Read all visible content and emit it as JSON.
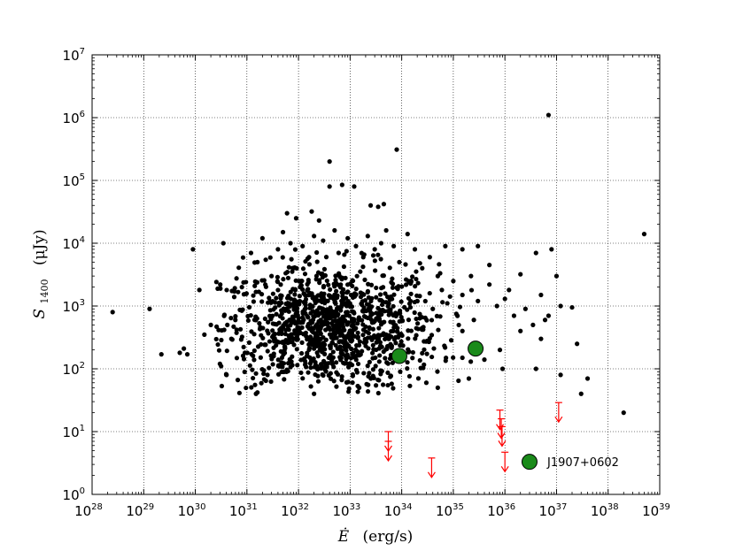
{
  "chart_data": {
    "type": "scatter",
    "xscale": "log",
    "yscale": "log",
    "xlim": [
      1e+28,
      1e+39
    ],
    "ylim": [
      1,
      10000000.0
    ],
    "grid": true,
    "xlabel": {
      "main": "Ė",
      "unit": "(erg/s)"
    },
    "ylabel": {
      "main": "S",
      "sub": "1400",
      "unit": "(μJy)"
    },
    "xticks": [
      {
        "base": "10",
        "exp": "28",
        "value": 1e+28
      },
      {
        "base": "10",
        "exp": "29",
        "value": 1e+29
      },
      {
        "base": "10",
        "exp": "30",
        "value": 1e+30
      },
      {
        "base": "10",
        "exp": "31",
        "value": 1e+31
      },
      {
        "base": "10",
        "exp": "32",
        "value": 1e+32
      },
      {
        "base": "10",
        "exp": "33",
        "value": 1e+33
      },
      {
        "base": "10",
        "exp": "34",
        "value": 1e+34
      },
      {
        "base": "10",
        "exp": "35",
        "value": 1e+35
      },
      {
        "base": "10",
        "exp": "36",
        "value": 1e+36
      },
      {
        "base": "10",
        "exp": "37",
        "value": 1e+37
      },
      {
        "base": "10",
        "exp": "38",
        "value": 1e+38
      },
      {
        "base": "10",
        "exp": "39",
        "value": 1e+39
      }
    ],
    "yticks": [
      {
        "base": "10",
        "exp": "0",
        "value": 1
      },
      {
        "base": "10",
        "exp": "1",
        "value": 10
      },
      {
        "base": "10",
        "exp": "2",
        "value": 100
      },
      {
        "base": "10",
        "exp": "3",
        "value": 1000
      },
      {
        "base": "10",
        "exp": "4",
        "value": 10000
      },
      {
        "base": "10",
        "exp": "5",
        "value": 100000
      },
      {
        "base": "10",
        "exp": "6",
        "value": 1000000
      },
      {
        "base": "10",
        "exp": "7",
        "value": 10000000
      }
    ],
    "colors": {
      "pulsars": "#000000",
      "detections": "#1a8a1a",
      "upper_limits": "#ff0000"
    },
    "series": [
      {
        "kind": "background-pulsars",
        "points": [
          [
            2.5e+28,
            800
          ],
          [
            1.3e+29,
            900
          ],
          [
            2.2e+29,
            170
          ],
          [
            5e+29,
            180
          ],
          [
            6e+29,
            210
          ],
          [
            7e+29,
            170
          ],
          [
            9e+29,
            8000
          ],
          [
            1.2e+30,
            1800
          ],
          [
            1.5e+30,
            350
          ],
          [
            2e+30,
            500
          ],
          [
            3.5e+30,
            10000
          ],
          [
            7e+31,
            10000
          ],
          [
            6e+31,
            30000
          ],
          [
            9e+31,
            25000
          ],
          [
            1.8e+32,
            32000
          ],
          [
            2.5e+32,
            23000
          ],
          [
            4e+32,
            200000
          ],
          [
            4e+32,
            80000
          ],
          [
            7e+32,
            85000
          ],
          [
            1.2e+33,
            80000
          ],
          [
            2.5e+33,
            40000
          ],
          [
            3.5e+33,
            38000
          ],
          [
            4.5e+33,
            42000
          ],
          [
            8e+33,
            310000
          ],
          [
            7e+36,
            1100000
          ],
          [
            4e+36,
            7000
          ],
          [
            8e+36,
            8000
          ],
          [
            5e+38,
            14000
          ],
          [
            2.5e+37,
            250
          ],
          [
            3e+37,
            40
          ],
          [
            4e+37,
            70
          ],
          [
            1.2e+37,
            80
          ],
          [
            2e+36,
            400
          ],
          [
            4e+36,
            100
          ],
          [
            2e+38,
            20
          ],
          [
            2e+37,
            950
          ],
          [
            1.2e+37,
            1000
          ],
          [
            1e+37,
            3000
          ],
          [
            5e+36,
            1500
          ],
          [
            6e+36,
            600
          ],
          [
            2e+36,
            3200
          ],
          [
            1.2e+36,
            1800
          ],
          [
            1.5e+35,
            8000
          ],
          [
            3e+35,
            9000
          ],
          [
            5e+35,
            4500
          ],
          [
            1.5e+35,
            150
          ],
          [
            4e+35,
            140
          ],
          [
            8e+35,
            200
          ],
          [
            9e+35,
            100
          ],
          [
            2e+35,
            70
          ],
          [
            5e+34,
            50
          ],
          [
            3e+34,
            60
          ],
          [
            1.5e+33,
            50
          ],
          [
            2e+32,
            40
          ],
          [
            1.5e+31,
            40
          ],
          [
            2.5e+31,
            80
          ],
          [
            4e+30,
            80
          ],
          [
            3e+30,
            120
          ],
          [
            5e+30,
            300
          ],
          [
            8e+30,
            2000
          ],
          [
            1.2e+31,
            7000
          ],
          [
            1.6e+31,
            5000
          ],
          [
            2e+31,
            12000
          ],
          [
            3e+31,
            3000
          ],
          [
            4e+31,
            8000
          ],
          [
            5e+31,
            15000
          ],
          [
            8e+31,
            4000
          ],
          [
            1.2e+32,
            9000
          ],
          [
            1.6e+32,
            6000
          ],
          [
            2e+32,
            13000
          ],
          [
            3e+32,
            11000
          ],
          [
            5e+32,
            16000
          ],
          [
            6e+32,
            7000
          ],
          [
            9e+32,
            12000
          ],
          [
            1.3e+33,
            9000
          ],
          [
            1.8e+33,
            6000
          ],
          [
            2.2e+33,
            13000
          ],
          [
            3e+33,
            8000
          ],
          [
            4e+33,
            10000
          ],
          [
            5e+33,
            16000
          ],
          [
            7e+33,
            9000
          ],
          [
            9e+33,
            5000
          ],
          [
            1.3e+34,
            14000
          ],
          [
            1.8e+34,
            8000
          ],
          [
            2.5e+34,
            4000
          ],
          [
            3.5e+34,
            6000
          ],
          [
            5e+34,
            3000
          ],
          [
            7e+34,
            9000
          ],
          [
            1e+35,
            2500
          ],
          [
            1.5e+35,
            1500
          ],
          [
            2.2e+35,
            3000
          ],
          [
            3e+35,
            1200
          ],
          [
            5e+35,
            2200
          ],
          [
            7e+35,
            1000
          ],
          [
            1e+36,
            1300
          ],
          [
            1.5e+36,
            700
          ],
          [
            2.5e+36,
            900
          ],
          [
            3.5e+36,
            500
          ],
          [
            5e+36,
            300
          ],
          [
            7e+36,
            700
          ],
          [
            1.5e+35,
            400
          ],
          [
            2.5e+35,
            600
          ],
          [
            6e+34,
            1800
          ],
          [
            4e+34,
            900
          ],
          [
            2e+34,
            1200
          ]
        ]
      },
      {
        "kind": "detections",
        "points": [
          [
            9e+33,
            160
          ],
          [
            2.7e+35,
            210
          ],
          [
            3e+36,
            3.3
          ]
        ]
      },
      {
        "kind": "upper-limits",
        "points": [
          [
            5.5e+33,
            10
          ],
          [
            5.5e+33,
            7
          ],
          [
            3.8e+34,
            3.8
          ],
          [
            8e+35,
            22
          ],
          [
            8.5e+35,
            16
          ],
          [
            8.8e+35,
            12
          ],
          [
            1e+36,
            4.7
          ],
          [
            1.1e+37,
            29
          ]
        ]
      }
    ],
    "annotations": [
      {
        "text": "J1907+0602",
        "x": 3e+36,
        "y": 3.3
      }
    ]
  }
}
